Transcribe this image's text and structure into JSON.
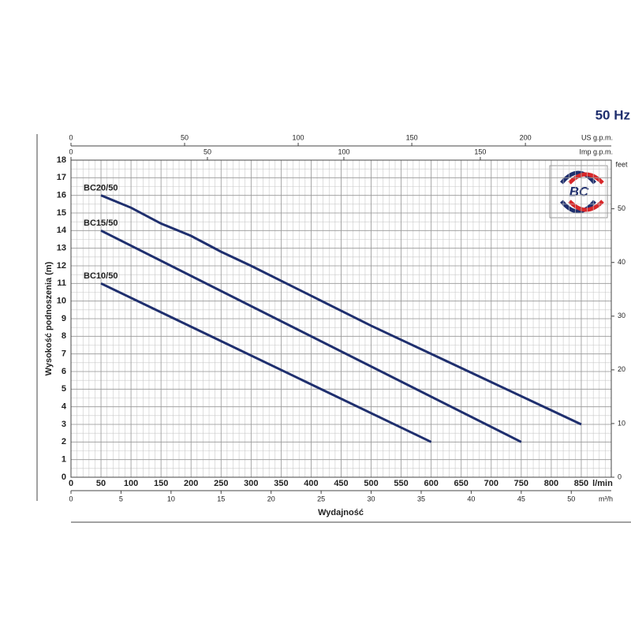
{
  "chart_data": {
    "type": "line",
    "title": "50 Hz",
    "ylabel": "Wysokość podnoszenia (m)",
    "xlabel": "Wydajność",
    "x_unit": "l/min",
    "xlim": [
      0,
      900
    ],
    "xticks": [
      0,
      50,
      100,
      150,
      200,
      250,
      300,
      350,
      400,
      450,
      500,
      550,
      600,
      650,
      700,
      750,
      800,
      850
    ],
    "ylim": [
      0,
      18
    ],
    "yticks": [
      0,
      1,
      2,
      3,
      4,
      5,
      6,
      7,
      8,
      9,
      10,
      11,
      12,
      13,
      14,
      15,
      16,
      17,
      18
    ],
    "grid": true,
    "minor_step_x": 10,
    "minor_step_y": 0.5,
    "y2_unit": "feet",
    "y2lim": [
      0,
      59.06
    ],
    "y2ticks": [
      0,
      10,
      20,
      30,
      40,
      50
    ],
    "extra_axes": [
      {
        "position": "top",
        "label": "US g.p.m.",
        "lim": [
          0,
          237.8
        ],
        "ticks": [
          0,
          50,
          100,
          150,
          200
        ]
      },
      {
        "position": "top-inner",
        "label": "Imp g.p.m.",
        "lim": [
          0,
          198
        ],
        "ticks": [
          0,
          50,
          100,
          150
        ]
      },
      {
        "position": "bottom",
        "label": "m³/h",
        "lim": [
          0,
          54
        ],
        "ticks": [
          0,
          5,
          10,
          15,
          20,
          25,
          30,
          35,
          40,
          45,
          50
        ]
      }
    ],
    "logo": "BC",
    "series": [
      {
        "name": "BC20/50",
        "color": "#1f2f6e",
        "x": [
          50,
          100,
          150,
          200,
          250,
          300,
          400,
          500,
          600,
          700,
          800,
          850
        ],
        "values": [
          16,
          15.3,
          14.4,
          13.7,
          12.8,
          12,
          10.3,
          8.6,
          7,
          5.4,
          3.8,
          3
        ]
      },
      {
        "name": "BC15/50",
        "color": "#1f2f6e",
        "x": [
          50,
          750
        ],
        "values": [
          14,
          2
        ]
      },
      {
        "name": "BC10/50",
        "color": "#1f2f6e",
        "x": [
          50,
          600
        ],
        "values": [
          11,
          2
        ]
      }
    ]
  }
}
